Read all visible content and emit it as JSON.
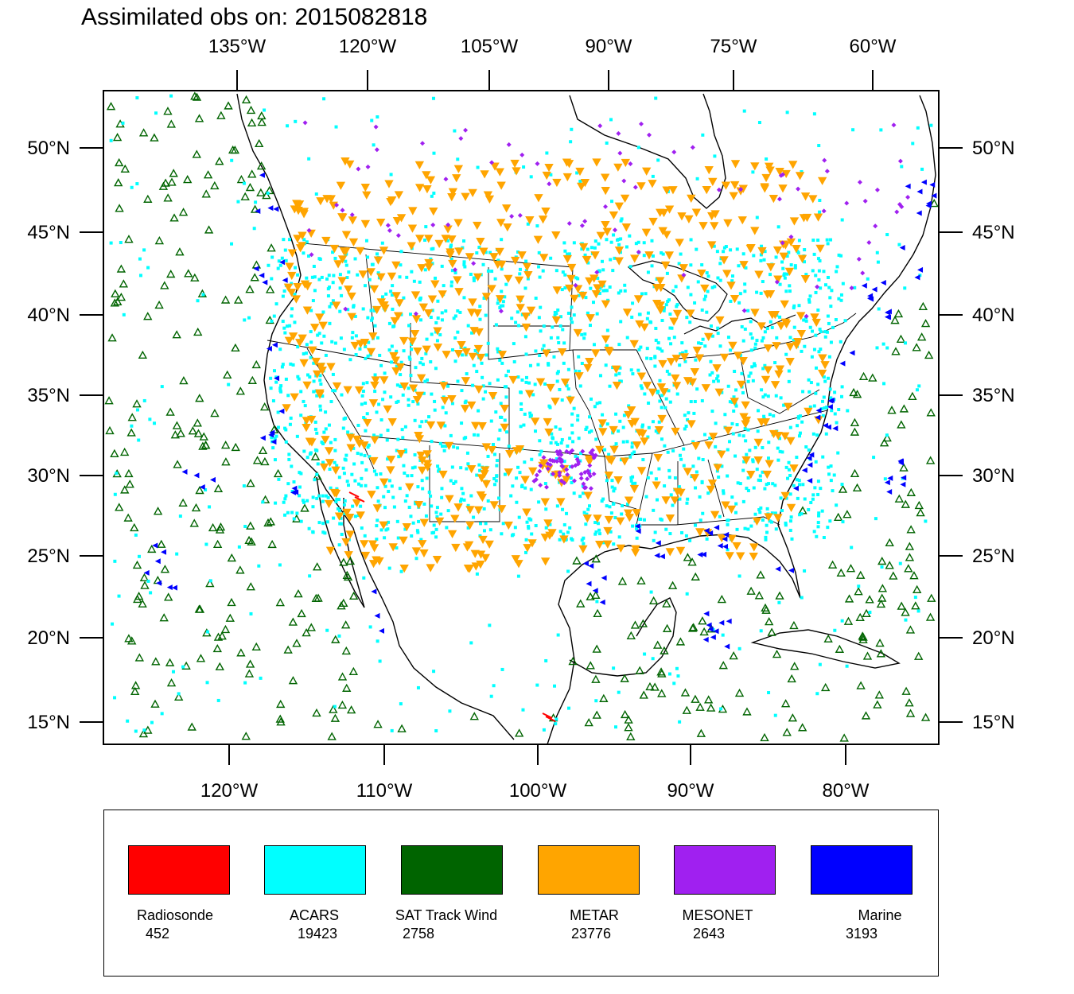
{
  "title": "Assimilated obs on: 2015082818",
  "map": {
    "top_lon_ticks": [
      "135°W",
      "120°W",
      "105°W",
      "90°W",
      "75°W",
      "60°W"
    ],
    "bottom_lon_ticks": [
      "120°W",
      "110°W",
      "100°W",
      "90°W",
      "80°W"
    ],
    "lat_ticks": [
      "50°N",
      "45°N",
      "40°N",
      "35°N",
      "30°N",
      "25°N",
      "20°N",
      "15°N"
    ]
  },
  "colors": {
    "radiosonde": "#ff0000",
    "acars": "#00ffff",
    "sat_track_wind": "#006400",
    "metar": "#ffa500",
    "mesonet": "#a020f0",
    "marine": "#0000ff"
  },
  "legend": [
    {
      "label": "Radiosonde",
      "count": "452",
      "color_key": "radiosonde"
    },
    {
      "label": "ACARS",
      "count": "19423",
      "color_key": "acars"
    },
    {
      "label": "SAT Track Wind",
      "count": "2758",
      "color_key": "sat_track_wind"
    },
    {
      "label": "METAR",
      "count": "23776",
      "color_key": "metar"
    },
    {
      "label": "MESONET",
      "count": "2643",
      "color_key": "mesonet"
    },
    {
      "label": "Marine",
      "count": "3193",
      "color_key": "marine"
    }
  ]
}
